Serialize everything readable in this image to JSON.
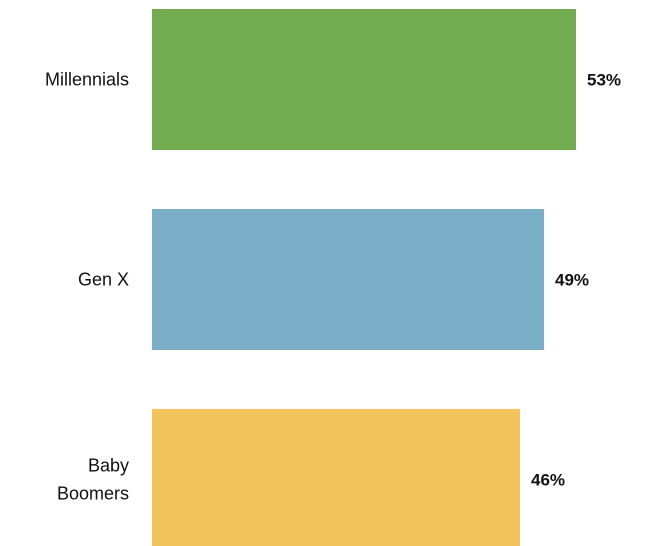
{
  "chart_data": {
    "type": "bar",
    "orientation": "horizontal",
    "categories": [
      "Millennials",
      "Gen X",
      "Baby Boomers"
    ],
    "category_lines": [
      [
        "Millennials"
      ],
      [
        "Gen X"
      ],
      [
        "Baby",
        "Boomers"
      ]
    ],
    "values": [
      53,
      49,
      46
    ],
    "value_labels": [
      "53%",
      "49%",
      "46%"
    ],
    "colors": [
      "#73ab51",
      "#7aaec7",
      "#f2c45c"
    ],
    "title": "",
    "xlabel": "",
    "ylabel": "",
    "xlim": [
      0,
      53
    ],
    "grid": false,
    "legend": "none"
  }
}
